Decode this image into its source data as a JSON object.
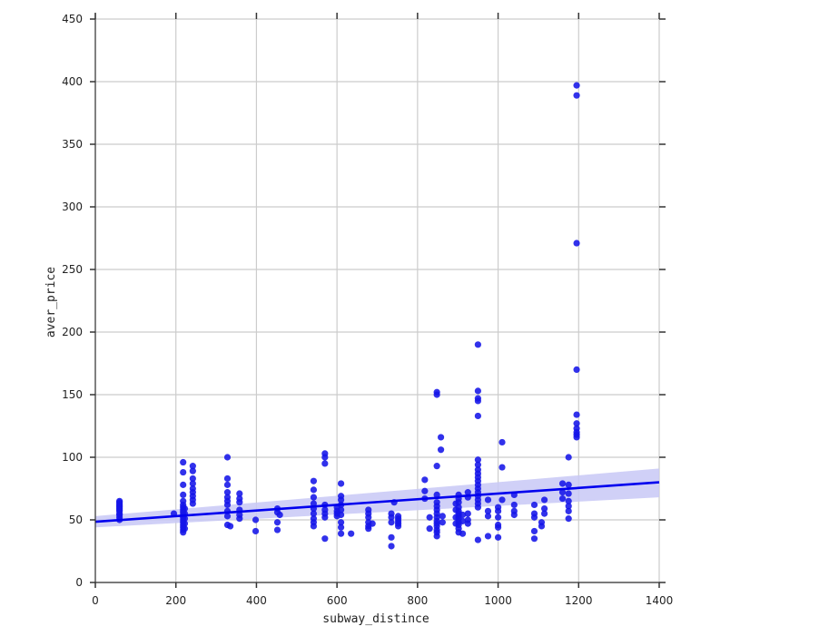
{
  "chart_data": {
    "type": "scatter",
    "xlabel": "subway_distince",
    "ylabel": "aver_price",
    "xlim": [
      0,
      1400
    ],
    "ylim": [
      0,
      450
    ],
    "xticks": [
      0,
      200,
      400,
      600,
      800,
      1000,
      1200,
      1400
    ],
    "yticks": [
      0,
      50,
      100,
      150,
      200,
      250,
      300,
      350,
      400,
      450
    ],
    "grid": true,
    "colors": {
      "points": "#1515e8",
      "regression": "#0000ee",
      "ci_band": "#c8c8f6",
      "grid": "#cccccc"
    },
    "regression": {
      "x": [
        0,
        1400
      ],
      "y": [
        48.5,
        80
      ],
      "ci_lower": [
        44,
        68
      ],
      "ci_upper": [
        53,
        91
      ]
    },
    "points": [
      [
        60,
        50
      ],
      [
        60,
        52
      ],
      [
        60,
        54
      ],
      [
        60,
        55
      ],
      [
        60,
        57
      ],
      [
        60,
        58
      ],
      [
        60,
        59
      ],
      [
        60,
        60
      ],
      [
        60,
        61
      ],
      [
        60,
        62
      ],
      [
        60,
        63
      ],
      [
        60,
        64
      ],
      [
        60,
        65
      ],
      [
        195,
        55
      ],
      [
        218,
        40
      ],
      [
        218,
        42
      ],
      [
        218,
        44
      ],
      [
        218,
        46
      ],
      [
        218,
        48
      ],
      [
        218,
        50
      ],
      [
        218,
        52
      ],
      [
        218,
        54
      ],
      [
        218,
        56
      ],
      [
        218,
        58
      ],
      [
        218,
        60
      ],
      [
        218,
        62
      ],
      [
        218,
        65
      ],
      [
        218,
        70
      ],
      [
        218,
        78
      ],
      [
        218,
        88
      ],
      [
        218,
        96
      ],
      [
        222,
        43
      ],
      [
        222,
        47
      ],
      [
        222,
        51
      ],
      [
        222,
        55
      ],
      [
        222,
        59
      ],
      [
        242,
        63
      ],
      [
        242,
        66
      ],
      [
        242,
        69
      ],
      [
        242,
        72
      ],
      [
        242,
        75
      ],
      [
        242,
        79
      ],
      [
        242,
        83
      ],
      [
        242,
        89
      ],
      [
        242,
        93
      ],
      [
        328,
        100
      ],
      [
        328,
        83
      ],
      [
        328,
        78
      ],
      [
        328,
        72
      ],
      [
        328,
        68
      ],
      [
        328,
        65
      ],
      [
        328,
        62
      ],
      [
        328,
        57
      ],
      [
        328,
        53
      ],
      [
        328,
        46
      ],
      [
        335,
        45
      ],
      [
        358,
        71
      ],
      [
        358,
        67
      ],
      [
        358,
        64
      ],
      [
        358,
        58
      ],
      [
        358,
        54
      ],
      [
        358,
        51
      ],
      [
        398,
        50
      ],
      [
        398,
        41
      ],
      [
        452,
        59
      ],
      [
        452,
        56
      ],
      [
        452,
        48
      ],
      [
        452,
        42
      ],
      [
        458,
        54
      ],
      [
        542,
        81
      ],
      [
        542,
        74
      ],
      [
        542,
        68
      ],
      [
        542,
        63
      ],
      [
        542,
        59
      ],
      [
        542,
        55
      ],
      [
        542,
        51
      ],
      [
        542,
        48
      ],
      [
        542,
        45
      ],
      [
        570,
        103
      ],
      [
        570,
        100
      ],
      [
        570,
        95
      ],
      [
        570,
        62
      ],
      [
        570,
        58
      ],
      [
        570,
        55
      ],
      [
        570,
        52
      ],
      [
        570,
        35
      ],
      [
        600,
        60
      ],
      [
        600,
        57
      ],
      [
        600,
        55
      ],
      [
        600,
        53
      ],
      [
        610,
        79
      ],
      [
        610,
        69
      ],
      [
        610,
        66
      ],
      [
        610,
        62
      ],
      [
        610,
        58
      ],
      [
        610,
        54
      ],
      [
        610,
        48
      ],
      [
        610,
        44
      ],
      [
        610,
        39
      ],
      [
        635,
        39
      ],
      [
        678,
        58
      ],
      [
        678,
        55
      ],
      [
        678,
        52
      ],
      [
        678,
        48
      ],
      [
        678,
        45
      ],
      [
        678,
        43
      ],
      [
        688,
        47
      ],
      [
        735,
        55
      ],
      [
        735,
        52
      ],
      [
        735,
        48
      ],
      [
        735,
        36
      ],
      [
        735,
        29
      ],
      [
        742,
        64
      ],
      [
        752,
        53
      ],
      [
        752,
        51
      ],
      [
        752,
        49
      ],
      [
        752,
        47
      ],
      [
        752,
        45
      ],
      [
        818,
        82
      ],
      [
        818,
        73
      ],
      [
        818,
        67
      ],
      [
        830,
        52
      ],
      [
        830,
        43
      ],
      [
        848,
        152
      ],
      [
        848,
        150
      ],
      [
        848,
        93
      ],
      [
        848,
        70
      ],
      [
        848,
        64
      ],
      [
        848,
        61
      ],
      [
        848,
        58
      ],
      [
        848,
        55
      ],
      [
        848,
        52
      ],
      [
        848,
        49
      ],
      [
        848,
        47
      ],
      [
        848,
        45
      ],
      [
        848,
        42
      ],
      [
        848,
        40
      ],
      [
        848,
        37
      ],
      [
        858,
        116
      ],
      [
        858,
        106
      ],
      [
        862,
        53
      ],
      [
        862,
        48
      ],
      [
        895,
        63
      ],
      [
        895,
        58
      ],
      [
        895,
        52
      ],
      [
        895,
        47
      ],
      [
        902,
        70
      ],
      [
        902,
        67
      ],
      [
        902,
        64
      ],
      [
        902,
        60
      ],
      [
        902,
        57
      ],
      [
        902,
        55
      ],
      [
        902,
        53
      ],
      [
        902,
        51
      ],
      [
        902,
        48
      ],
      [
        902,
        46
      ],
      [
        902,
        43
      ],
      [
        902,
        40
      ],
      [
        912,
        54
      ],
      [
        912,
        49
      ],
      [
        912,
        39
      ],
      [
        925,
        72
      ],
      [
        925,
        68
      ],
      [
        925,
        55
      ],
      [
        925,
        50
      ],
      [
        925,
        47
      ],
      [
        950,
        190
      ],
      [
        950,
        153
      ],
      [
        950,
        147
      ],
      [
        950,
        145
      ],
      [
        950,
        133
      ],
      [
        950,
        98
      ],
      [
        950,
        94
      ],
      [
        950,
        90
      ],
      [
        950,
        87
      ],
      [
        950,
        84
      ],
      [
        950,
        81
      ],
      [
        950,
        78
      ],
      [
        950,
        75
      ],
      [
        950,
        72
      ],
      [
        950,
        69
      ],
      [
        950,
        66
      ],
      [
        950,
        63
      ],
      [
        950,
        60
      ],
      [
        950,
        34
      ],
      [
        975,
        66
      ],
      [
        975,
        57
      ],
      [
        975,
        53
      ],
      [
        975,
        37
      ],
      [
        1000,
        60
      ],
      [
        1000,
        57
      ],
      [
        1000,
        52
      ],
      [
        1000,
        46
      ],
      [
        1000,
        44
      ],
      [
        1000,
        36
      ],
      [
        1010,
        112
      ],
      [
        1010,
        92
      ],
      [
        1010,
        66
      ],
      [
        1040,
        70
      ],
      [
        1040,
        62
      ],
      [
        1040,
        57
      ],
      [
        1040,
        54
      ],
      [
        1090,
        62
      ],
      [
        1090,
        55
      ],
      [
        1090,
        52
      ],
      [
        1090,
        41
      ],
      [
        1090,
        35
      ],
      [
        1108,
        48
      ],
      [
        1108,
        45
      ],
      [
        1115,
        66
      ],
      [
        1115,
        59
      ],
      [
        1115,
        55
      ],
      [
        1160,
        79
      ],
      [
        1160,
        72
      ],
      [
        1160,
        67
      ],
      [
        1175,
        100
      ],
      [
        1175,
        78
      ],
      [
        1175,
        71
      ],
      [
        1175,
        65
      ],
      [
        1175,
        61
      ],
      [
        1175,
        57
      ],
      [
        1175,
        51
      ],
      [
        1195,
        397
      ],
      [
        1195,
        389
      ],
      [
        1195,
        271
      ],
      [
        1195,
        170
      ],
      [
        1195,
        134
      ],
      [
        1195,
        127
      ],
      [
        1195,
        123
      ],
      [
        1195,
        120
      ],
      [
        1195,
        118
      ],
      [
        1195,
        116
      ]
    ]
  }
}
